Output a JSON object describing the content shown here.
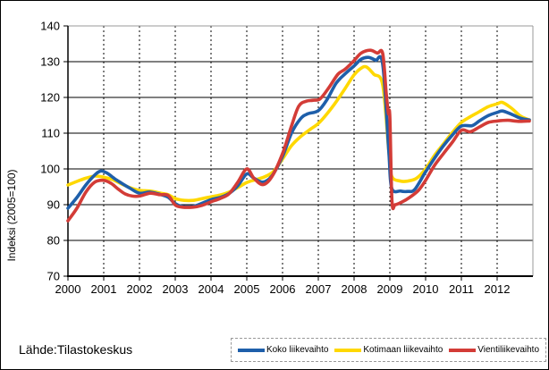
{
  "page": {
    "source_label": "Lähde:Tilastokeskus"
  },
  "chart_data": {
    "type": "line",
    "title": "",
    "xlabel": "",
    "ylabel": "Indeksi (2005=100)",
    "xlim": [
      2000,
      2013
    ],
    "ylim": [
      70,
      140
    ],
    "xticks": [
      2000,
      2001,
      2002,
      2003,
      2004,
      2005,
      2006,
      2007,
      2008,
      2009,
      2010,
      2011,
      2012
    ],
    "yticks": [
      70,
      80,
      90,
      100,
      110,
      120,
      130,
      140
    ],
    "grid": {
      "horizontal": "solid",
      "vertical": "dashed"
    },
    "legend_position": "bottom-right-box",
    "series": [
      {
        "name": "Koko liikevaihto",
        "color": "#1E5FAA",
        "points": [
          [
            2000.0,
            89
          ],
          [
            2000.25,
            92
          ],
          [
            2000.5,
            95.5
          ],
          [
            2000.75,
            98.3
          ],
          [
            2000.92,
            99.4
          ],
          [
            2001.1,
            98.8
          ],
          [
            2001.3,
            97.3
          ],
          [
            2001.5,
            96
          ],
          [
            2001.75,
            94.5
          ],
          [
            2002.0,
            93.2
          ],
          [
            2002.3,
            93.5
          ],
          [
            2002.6,
            92.8
          ],
          [
            2002.8,
            92.1
          ],
          [
            2003.0,
            90.3
          ],
          [
            2003.2,
            89.5
          ],
          [
            2003.5,
            89.5
          ],
          [
            2003.75,
            90.4
          ],
          [
            2004.0,
            91.4
          ],
          [
            2004.25,
            92
          ],
          [
            2004.5,
            93.1
          ],
          [
            2004.75,
            95.3
          ],
          [
            2005.0,
            98.6
          ],
          [
            2005.2,
            97.4
          ],
          [
            2005.45,
            96.3
          ],
          [
            2005.7,
            98
          ],
          [
            2006.0,
            103.5
          ],
          [
            2006.25,
            110
          ],
          [
            2006.5,
            114
          ],
          [
            2006.7,
            115.4
          ],
          [
            2007.0,
            116.3
          ],
          [
            2007.25,
            119.5
          ],
          [
            2007.5,
            124
          ],
          [
            2007.75,
            126.6
          ],
          [
            2008.0,
            128.8
          ],
          [
            2008.2,
            130.7
          ],
          [
            2008.4,
            131.2
          ],
          [
            2008.6,
            130.4
          ],
          [
            2008.8,
            129.3
          ],
          [
            2008.97,
            105
          ],
          [
            2009.05,
            94.7
          ],
          [
            2009.3,
            93.8
          ],
          [
            2009.5,
            93.7
          ],
          [
            2009.7,
            94.3
          ],
          [
            2010.0,
            99.2
          ],
          [
            2010.25,
            103
          ],
          [
            2010.5,
            106.5
          ],
          [
            2010.75,
            109.5
          ],
          [
            2011.0,
            112
          ],
          [
            2011.3,
            112.1
          ],
          [
            2011.5,
            113.4
          ],
          [
            2011.75,
            114.9
          ],
          [
            2012.0,
            115.8
          ],
          [
            2012.15,
            116.2
          ],
          [
            2012.4,
            115.3
          ],
          [
            2012.65,
            114.2
          ],
          [
            2012.9,
            113.7
          ]
        ]
      },
      {
        "name": "Kotimaan liikevaihto",
        "color": "#FFD800",
        "points": [
          [
            2000.0,
            95.5
          ],
          [
            2000.25,
            96.5
          ],
          [
            2000.5,
            97.4
          ],
          [
            2000.75,
            98
          ],
          [
            2001.0,
            97.7
          ],
          [
            2001.25,
            97
          ],
          [
            2001.5,
            95.8
          ],
          [
            2001.75,
            94.7
          ],
          [
            2002.0,
            94
          ],
          [
            2002.3,
            93.8
          ],
          [
            2002.6,
            93.2
          ],
          [
            2002.8,
            92.8
          ],
          [
            2003.0,
            91.7
          ],
          [
            2003.25,
            91.2
          ],
          [
            2003.5,
            91.2
          ],
          [
            2003.75,
            91.7
          ],
          [
            2004.0,
            92.2
          ],
          [
            2004.25,
            92.7
          ],
          [
            2004.5,
            93.5
          ],
          [
            2004.75,
            94.8
          ],
          [
            2005.0,
            96.2
          ],
          [
            2005.25,
            97
          ],
          [
            2005.5,
            97.8
          ],
          [
            2005.75,
            99.3
          ],
          [
            2006.0,
            102.8
          ],
          [
            2006.25,
            106.5
          ],
          [
            2006.5,
            109
          ],
          [
            2006.75,
            110.9
          ],
          [
            2007.0,
            112.7
          ],
          [
            2007.25,
            115.5
          ],
          [
            2007.5,
            118.8
          ],
          [
            2007.75,
            122.5
          ],
          [
            2008.0,
            126.3
          ],
          [
            2008.2,
            128.2
          ],
          [
            2008.35,
            128.5
          ],
          [
            2008.55,
            126.5
          ],
          [
            2008.8,
            123.5
          ],
          [
            2008.97,
            105
          ],
          [
            2009.05,
            98
          ],
          [
            2009.3,
            96.6
          ],
          [
            2009.5,
            96.6
          ],
          [
            2009.75,
            97.4
          ],
          [
            2010.0,
            100
          ],
          [
            2010.25,
            103.8
          ],
          [
            2010.5,
            107
          ],
          [
            2010.75,
            110.2
          ],
          [
            2011.0,
            113
          ],
          [
            2011.25,
            114.6
          ],
          [
            2011.5,
            116
          ],
          [
            2011.75,
            117.4
          ],
          [
            2012.0,
            118.2
          ],
          [
            2012.15,
            118.6
          ],
          [
            2012.4,
            117
          ],
          [
            2012.65,
            114.8
          ],
          [
            2012.9,
            113.7
          ]
        ]
      },
      {
        "name": "Vientiliikevaihto",
        "color": "#D33C37",
        "points": [
          [
            2000.0,
            85.5
          ],
          [
            2000.25,
            89
          ],
          [
            2000.5,
            93.5
          ],
          [
            2000.75,
            96.3
          ],
          [
            2001.0,
            96.8
          ],
          [
            2001.2,
            96
          ],
          [
            2001.4,
            94.4
          ],
          [
            2001.6,
            93
          ],
          [
            2001.8,
            92.4
          ],
          [
            2002.0,
            92.4
          ],
          [
            2002.3,
            93.2
          ],
          [
            2002.55,
            92.8
          ],
          [
            2002.8,
            92.6
          ],
          [
            2003.0,
            89.9
          ],
          [
            2003.2,
            89.3
          ],
          [
            2003.5,
            89.3
          ],
          [
            2003.75,
            89.8
          ],
          [
            2004.0,
            90.8
          ],
          [
            2004.25,
            91.7
          ],
          [
            2004.5,
            93
          ],
          [
            2004.75,
            96.3
          ],
          [
            2005.0,
            100
          ],
          [
            2005.2,
            97.4
          ],
          [
            2005.45,
            95.6
          ],
          [
            2005.7,
            97.8
          ],
          [
            2006.0,
            104.3
          ],
          [
            2006.25,
            112
          ],
          [
            2006.45,
            117.5
          ],
          [
            2006.65,
            118.9
          ],
          [
            2006.85,
            119.2
          ],
          [
            2007.05,
            119.6
          ],
          [
            2007.3,
            122.8
          ],
          [
            2007.55,
            126.5
          ],
          [
            2007.75,
            127.9
          ],
          [
            2008.0,
            130.3
          ],
          [
            2008.2,
            132.4
          ],
          [
            2008.45,
            133.2
          ],
          [
            2008.65,
            132.4
          ],
          [
            2008.8,
            132.3
          ],
          [
            2008.9,
            121
          ],
          [
            2008.96,
            115.5
          ],
          [
            2009.0,
            114.6
          ],
          [
            2009.06,
            91
          ],
          [
            2009.15,
            90
          ],
          [
            2009.35,
            90.8
          ],
          [
            2009.55,
            92
          ],
          [
            2009.8,
            94
          ],
          [
            2010.0,
            96.8
          ],
          [
            2010.25,
            101
          ],
          [
            2010.5,
            104.3
          ],
          [
            2010.75,
            107.5
          ],
          [
            2011.0,
            110.8
          ],
          [
            2011.25,
            110.4
          ],
          [
            2011.5,
            111.7
          ],
          [
            2011.75,
            113
          ],
          [
            2012.0,
            113.4
          ],
          [
            2012.3,
            113.6
          ],
          [
            2012.6,
            113.3
          ],
          [
            2012.9,
            113.4
          ]
        ]
      }
    ]
  }
}
